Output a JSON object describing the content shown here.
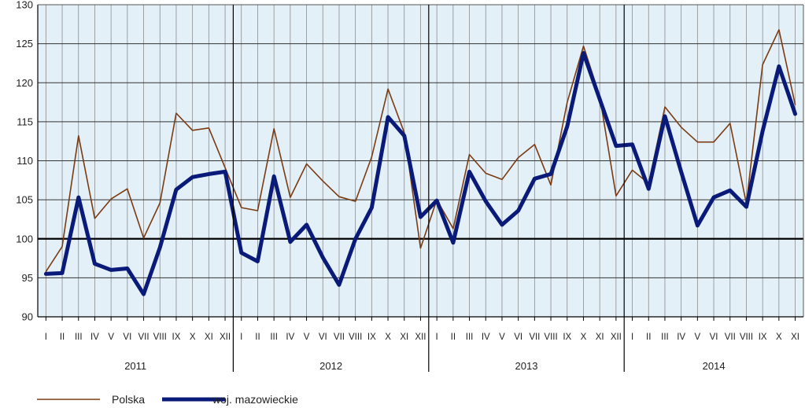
{
  "chart_data": {
    "type": "line",
    "ylim": [
      90,
      130
    ],
    "yticks": [
      90,
      95,
      100,
      105,
      110,
      115,
      120,
      125,
      130
    ],
    "reference_line": 100,
    "grid": true,
    "legend_position": "bottom-left",
    "months": [
      "I",
      "II",
      "III",
      "IV",
      "V",
      "VI",
      "VII",
      "VIII",
      "IX",
      "X",
      "XI",
      "XII"
    ],
    "years": [
      "2011",
      "2012",
      "2013",
      "2014"
    ],
    "x_count": 47,
    "colors": {
      "plot_bg": "#e4f0f8",
      "grid": "#8c8c8c",
      "axis": "#000000"
    },
    "series": [
      {
        "name": "Polska",
        "color": "#7a3b12",
        "values": [
          95.8,
          99.0,
          113.2,
          102.6,
          105.1,
          106.4,
          100.1,
          104.6,
          116.1,
          113.9,
          114.2,
          109.1,
          104.0,
          103.6,
          114.1,
          105.3,
          109.6,
          107.4,
          105.4,
          104.8,
          110.5,
          119.2,
          113.6,
          98.8,
          105.0,
          101.3,
          110.8,
          108.4,
          107.6,
          110.4,
          112.1,
          106.9,
          117.5,
          124.7,
          118.3,
          105.5,
          108.8,
          107.1,
          116.9,
          114.3,
          112.4,
          112.4,
          114.8,
          104.5,
          122.3,
          126.8,
          117.2
        ]
      },
      {
        "name": "woj. mazowieckie",
        "color": "#0a1a78",
        "values": [
          95.5,
          95.6,
          105.3,
          96.8,
          96.0,
          96.2,
          92.9,
          98.9,
          106.3,
          107.9,
          108.3,
          108.6,
          98.2,
          97.1,
          108.0,
          99.6,
          101.8,
          97.6,
          94.1,
          100.0,
          104.0,
          115.6,
          113.2,
          102.8,
          104.9,
          99.5,
          108.6,
          104.8,
          101.8,
          103.6,
          107.7,
          108.3,
          114.4,
          123.8,
          117.9,
          111.9,
          112.1,
          106.4,
          115.7,
          108.6,
          101.7,
          105.3,
          106.2,
          104.1,
          113.8,
          122.1,
          116.0
        ]
      }
    ]
  }
}
